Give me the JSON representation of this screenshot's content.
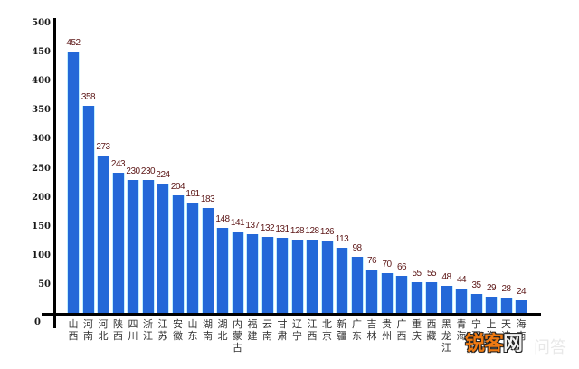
{
  "chart_data": {
    "type": "bar",
    "title": "",
    "xlabel": "",
    "ylabel": "",
    "ylim": [
      0,
      500
    ],
    "yticks": [
      0,
      50,
      100,
      150,
      200,
      250,
      300,
      350,
      400,
      450,
      500
    ],
    "grid": false,
    "legend": null,
    "categories": [
      "山西",
      "河南",
      "河北",
      "陕西",
      "四川",
      "浙江",
      "江苏",
      "安徽",
      "山东",
      "湖南",
      "湖北",
      "内蒙古",
      "福建",
      "云南",
      "甘肃",
      "辽宁",
      "江西",
      "北京",
      "新疆",
      "广东",
      "吉林",
      "贵州",
      "广西",
      "重庆",
      "西藏",
      "黑龙江",
      "青海",
      "宁夏",
      "上海",
      "天津",
      "海南"
    ],
    "values": [
      452,
      358,
      273,
      243,
      230,
      230,
      224,
      204,
      191,
      183,
      148,
      141,
      137,
      132,
      131,
      128,
      128,
      126,
      113,
      98,
      76,
      70,
      66,
      55,
      55,
      48,
      44,
      35,
      29,
      28,
      24
    ],
    "colors": {
      "bar": "#2468d8",
      "bar_edge": "#bfefff",
      "value_label": "#5c1616",
      "axis": "#000000"
    }
  },
  "watermark": {
    "main_part1": "锐客",
    "main_part2": "网",
    "faint": "问答"
  }
}
